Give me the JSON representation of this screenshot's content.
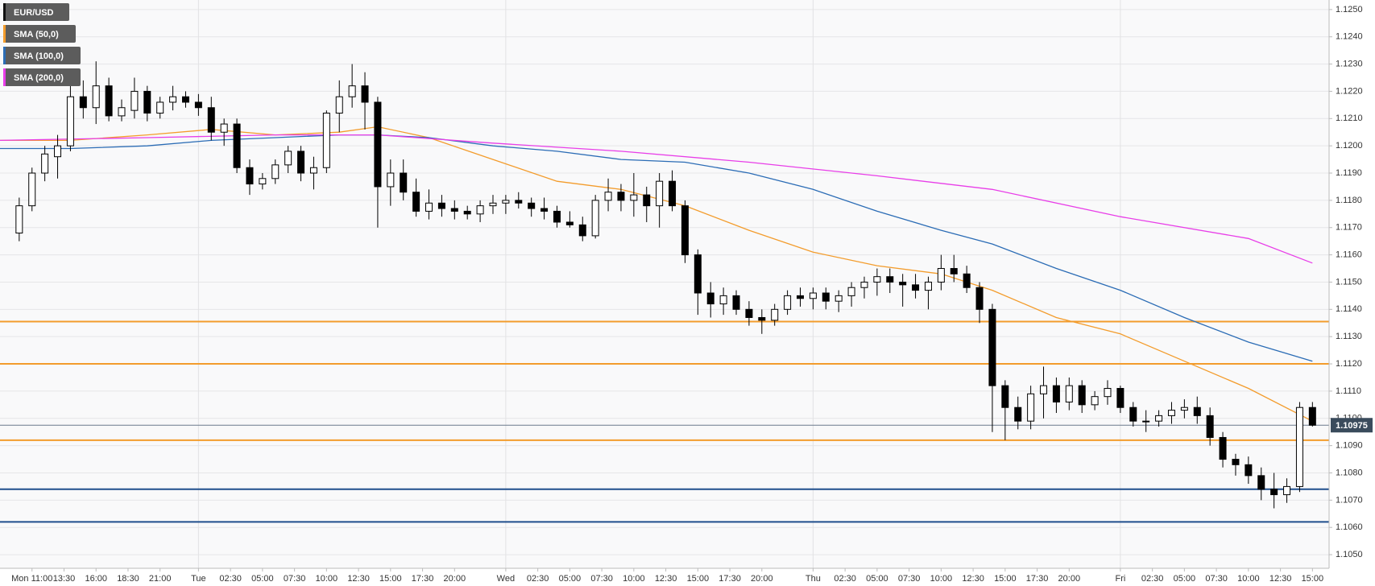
{
  "chart_data": {
    "type": "candlestick",
    "series": [
      {
        "name": "EUR/USD",
        "color": "#000000",
        "x": [
          10,
          11,
          12,
          13,
          14,
          15,
          16,
          17,
          18,
          19,
          20,
          21,
          22,
          23,
          24,
          25,
          26,
          27,
          28,
          29,
          30,
          31,
          32,
          33,
          34,
          35,
          36,
          37,
          38,
          39,
          40,
          41,
          42,
          43,
          44,
          45,
          46,
          47,
          48,
          49,
          50,
          51,
          52,
          53,
          54,
          55,
          56,
          57,
          58,
          59,
          60,
          61,
          62,
          63,
          64,
          65,
          66,
          67,
          68,
          69,
          70,
          71,
          72,
          73,
          74,
          75,
          76,
          77,
          78,
          79,
          80,
          81,
          82,
          83,
          84,
          85,
          86,
          87,
          88,
          89,
          90,
          91,
          92,
          93,
          94,
          95,
          96,
          97,
          98,
          99,
          100,
          101,
          102,
          103,
          104,
          105,
          106,
          107,
          108,
          109,
          110,
          111
        ],
        "open": [
          1.1168,
          1.1178,
          1.119,
          1.1196,
          1.12,
          1.1218,
          1.1214,
          1.1222,
          1.1211,
          1.1213,
          1.122,
          1.1212,
          1.1216,
          1.1218,
          1.1216,
          1.1214,
          1.1205,
          1.1208,
          1.1192,
          1.1186,
          1.1188,
          1.1193,
          1.1198,
          1.119,
          1.1192,
          1.1212,
          1.1218,
          1.1222,
          1.1216,
          1.1185,
          1.119,
          1.1183,
          1.1176,
          1.1179,
          1.1177,
          1.1176,
          1.1175,
          1.1178,
          1.1179,
          1.118,
          1.1179,
          1.1177,
          1.1176,
          1.1172,
          1.1171,
          1.1167,
          1.118,
          1.1183,
          1.118,
          1.1182,
          1.1178,
          1.1187,
          1.1178,
          1.116,
          1.1146,
          1.1142,
          1.1145,
          1.114,
          1.1137,
          1.1136,
          1.114,
          1.1145,
          1.1144,
          1.1146,
          1.1143,
          1.1145,
          1.1148,
          1.115,
          1.1152,
          1.115,
          1.1149,
          1.1147,
          1.115,
          1.1155,
          1.1153,
          1.1148,
          1.114,
          1.1112,
          1.1104,
          1.1099,
          1.1109,
          1.1112,
          1.1106,
          1.1112,
          1.1105,
          1.1108,
          1.1111,
          1.1104,
          1.1099,
          1.1099,
          1.1101,
          1.1103,
          1.1104,
          1.1101,
          1.1093,
          1.1085,
          1.1083,
          1.1079,
          1.1074,
          1.1072,
          1.1075,
          1.1104
        ],
        "high": [
          1.1181,
          1.1192,
          1.12,
          1.1204,
          1.1228,
          1.1224,
          1.1231,
          1.1225,
          1.1217,
          1.1225,
          1.1222,
          1.1218,
          1.1222,
          1.122,
          1.1219,
          1.1218,
          1.121,
          1.121,
          1.1195,
          1.119,
          1.1195,
          1.12,
          1.12,
          1.1196,
          1.1213,
          1.1224,
          1.123,
          1.1227,
          1.1218,
          1.1195,
          1.1195,
          1.1188,
          1.1184,
          1.1182,
          1.118,
          1.1178,
          1.118,
          1.1182,
          1.1182,
          1.1183,
          1.1181,
          1.1181,
          1.1178,
          1.1176,
          1.1174,
          1.1182,
          1.1188,
          1.1186,
          1.119,
          1.1185,
          1.119,
          1.1191,
          1.118,
          1.1162,
          1.115,
          1.1148,
          1.1147,
          1.1143,
          1.114,
          1.1142,
          1.1147,
          1.1148,
          1.1148,
          1.1148,
          1.1147,
          1.115,
          1.1152,
          1.1155,
          1.1155,
          1.1153,
          1.1153,
          1.1152,
          1.116,
          1.116,
          1.1156,
          1.115,
          1.1142,
          1.1114,
          1.1108,
          1.1112,
          1.1119,
          1.1115,
          1.1115,
          1.1114,
          1.111,
          1.1114,
          1.1112,
          1.1106,
          1.1103,
          1.1103,
          1.1106,
          1.1107,
          1.1108,
          1.1104,
          1.1095,
          1.1087,
          1.1086,
          1.1082,
          1.108,
          1.1078,
          1.1106,
          1.1106
        ],
        "low": [
          1.1165,
          1.1176,
          1.1187,
          1.1188,
          1.1198,
          1.121,
          1.1208,
          1.1209,
          1.1209,
          1.121,
          1.1209,
          1.121,
          1.1213,
          1.1214,
          1.1211,
          1.1202,
          1.12,
          1.119,
          1.1182,
          1.1184,
          1.1186,
          1.119,
          1.1187,
          1.1184,
          1.119,
          1.1205,
          1.1214,
          1.1206,
          1.117,
          1.1178,
          1.118,
          1.1174,
          1.1173,
          1.1174,
          1.1173,
          1.1173,
          1.1172,
          1.1175,
          1.1175,
          1.1177,
          1.1174,
          1.1173,
          1.117,
          1.117,
          1.1165,
          1.1166,
          1.1176,
          1.1176,
          1.1174,
          1.1172,
          1.117,
          1.1176,
          1.1157,
          1.1138,
          1.1137,
          1.1138,
          1.1138,
          1.1134,
          1.1131,
          1.1134,
          1.1138,
          1.1141,
          1.114,
          1.114,
          1.1139,
          1.1141,
          1.1144,
          1.1145,
          1.1146,
          1.1141,
          1.1144,
          1.114,
          1.1147,
          1.115,
          1.1146,
          1.1135,
          1.1095,
          1.1092,
          1.1096,
          1.1096,
          1.11,
          1.1102,
          1.1103,
          1.1102,
          1.1103,
          1.1105,
          1.1102,
          1.1097,
          1.1095,
          1.1097,
          1.1098,
          1.11,
          1.1098,
          1.109,
          1.1082,
          1.1079,
          1.1076,
          1.107,
          1.1067,
          1.1069,
          1.1073,
          1.1097
        ],
        "close": [
          1.1178,
          1.119,
          1.1197,
          1.12,
          1.1218,
          1.1214,
          1.1222,
          1.1211,
          1.1214,
          1.122,
          1.1212,
          1.1216,
          1.1218,
          1.1216,
          1.1214,
          1.1205,
          1.1208,
          1.1192,
          1.1186,
          1.1188,
          1.1193,
          1.1198,
          1.119,
          1.1192,
          1.1212,
          1.1218,
          1.1222,
          1.1216,
          1.1185,
          1.119,
          1.1183,
          1.1176,
          1.1179,
          1.1177,
          1.1176,
          1.1175,
          1.1178,
          1.1179,
          1.118,
          1.1179,
          1.1177,
          1.1176,
          1.1172,
          1.1171,
          1.1167,
          1.118,
          1.1183,
          1.118,
          1.1182,
          1.1178,
          1.1187,
          1.1178,
          1.116,
          1.1146,
          1.1142,
          1.1145,
          1.114,
          1.1137,
          1.1136,
          1.114,
          1.1145,
          1.1144,
          1.1146,
          1.1143,
          1.1145,
          1.1148,
          1.115,
          1.1152,
          1.115,
          1.1149,
          1.1147,
          1.115,
          1.1155,
          1.1153,
          1.1148,
          1.114,
          1.1112,
          1.1104,
          1.1099,
          1.1109,
          1.1112,
          1.1106,
          1.1112,
          1.1105,
          1.1108,
          1.1111,
          1.1104,
          1.1099,
          1.1099,
          1.1101,
          1.1103,
          1.1104,
          1.1101,
          1.1093,
          1.1085,
          1.1083,
          1.1079,
          1.1074,
          1.1072,
          1.1075,
          1.1104,
          1.10975
        ]
      },
      {
        "name": "SMA (50,0)",
        "color": "#f39c2c",
        "x": [
          8.5,
          14,
          20,
          25,
          30,
          35,
          38,
          42,
          47,
          52,
          57,
          62,
          67,
          72,
          77,
          82,
          86,
          91,
          96,
          101,
          106,
          111
        ],
        "values": [
          1.1202,
          1.1202,
          1.1204,
          1.1206,
          1.1204,
          1.1205,
          1.1207,
          1.1203,
          1.1195,
          1.1187,
          1.1184,
          1.1178,
          1.1169,
          1.1161,
          1.1156,
          1.1153,
          1.1147,
          1.1137,
          1.1131,
          1.1121,
          1.1111,
          1.1099
        ]
      },
      {
        "name": "SMA (100,0)",
        "color": "#2b6cb5",
        "x": [
          8.5,
          14,
          20,
          25,
          30,
          35,
          38,
          42,
          47,
          52,
          57,
          62,
          67,
          72,
          77,
          82,
          86,
          91,
          96,
          101,
          106,
          111
        ],
        "values": [
          1.1199,
          1.1199,
          1.12,
          1.1202,
          1.1203,
          1.1204,
          1.1204,
          1.1203,
          1.12,
          1.1198,
          1.1195,
          1.1194,
          1.119,
          1.1184,
          1.1176,
          1.1169,
          1.1164,
          1.1155,
          1.1147,
          1.1137,
          1.1128,
          1.1121
        ]
      },
      {
        "name": "SMA (200,0)",
        "color": "#e83ee8",
        "x": [
          8.5,
          20,
          30,
          38,
          47,
          57,
          67,
          77,
          86,
          96,
          106,
          111
        ],
        "values": [
          1.1202,
          1.1203,
          1.1204,
          1.1204,
          1.1201,
          1.1198,
          1.1194,
          1.1189,
          1.1184,
          1.1174,
          1.1166,
          1.1157
        ]
      }
    ],
    "hlines": [
      {
        "value": 1.11355,
        "color": "#f39c2c"
      },
      {
        "value": 1.112,
        "color": "#f39c2c"
      },
      {
        "value": 1.1092,
        "color": "#f39c2c"
      },
      {
        "value": 1.1074,
        "color": "#1f4e8c"
      },
      {
        "value": 1.1062,
        "color": "#1f4e8c"
      }
    ],
    "last_price": 1.10975,
    "xlim": [
      8.5,
      112.3
    ],
    "ylim": [
      1.1045,
      1.12535
    ],
    "xgrid": [
      24,
      48,
      72,
      96
    ],
    "xticks": [
      {
        "value": 11,
        "label": "Mon 11:00"
      },
      {
        "value": 13.5,
        "label": "13:30"
      },
      {
        "value": 16,
        "label": "16:00"
      },
      {
        "value": 18.5,
        "label": "18:30"
      },
      {
        "value": 21,
        "label": "21:00"
      },
      {
        "value": 24,
        "label": "Tue"
      },
      {
        "value": 26.5,
        "label": "02:30"
      },
      {
        "value": 29,
        "label": "05:00"
      },
      {
        "value": 31.5,
        "label": "07:30"
      },
      {
        "value": 34,
        "label": "10:00"
      },
      {
        "value": 36.5,
        "label": "12:30"
      },
      {
        "value": 39,
        "label": "15:00"
      },
      {
        "value": 41.5,
        "label": "17:30"
      },
      {
        "value": 44,
        "label": "20:00"
      },
      {
        "value": 48,
        "label": "Wed"
      },
      {
        "value": 50.5,
        "label": "02:30"
      },
      {
        "value": 53,
        "label": "05:00"
      },
      {
        "value": 55.5,
        "label": "07:30"
      },
      {
        "value": 58,
        "label": "10:00"
      },
      {
        "value": 60.5,
        "label": "12:30"
      },
      {
        "value": 63,
        "label": "15:00"
      },
      {
        "value": 65.5,
        "label": "17:30"
      },
      {
        "value": 68,
        "label": "20:00"
      },
      {
        "value": 72,
        "label": "Thu"
      },
      {
        "value": 74.5,
        "label": "02:30"
      },
      {
        "value": 77,
        "label": "05:00"
      },
      {
        "value": 79.5,
        "label": "07:30"
      },
      {
        "value": 82,
        "label": "10:00"
      },
      {
        "value": 84.5,
        "label": "12:30"
      },
      {
        "value": 87,
        "label": "15:00"
      },
      {
        "value": 89.5,
        "label": "17:30"
      },
      {
        "value": 92,
        "label": "20:00"
      },
      {
        "value": 96,
        "label": "Fri"
      },
      {
        "value": 98.5,
        "label": "02:30"
      },
      {
        "value": 101,
        "label": "05:00"
      },
      {
        "value": 103.5,
        "label": "07:30"
      },
      {
        "value": 106,
        "label": "10:00"
      },
      {
        "value": 108.5,
        "label": "12:30"
      },
      {
        "value": 111,
        "label": "15:00"
      }
    ],
    "yticks": [
      {
        "value": 1.105,
        "label": "1.1050"
      },
      {
        "value": 1.106,
        "label": "1.1060"
      },
      {
        "value": 1.107,
        "label": "1.1070"
      },
      {
        "value": 1.108,
        "label": "1.1080"
      },
      {
        "value": 1.109,
        "label": "1.1090"
      },
      {
        "value": 1.11,
        "label": "1.1100"
      },
      {
        "value": 1.111,
        "label": "1.1110"
      },
      {
        "value": 1.112,
        "label": "1.1120"
      },
      {
        "value": 1.113,
        "label": "1.1130"
      },
      {
        "value": 1.114,
        "label": "1.1140"
      },
      {
        "value": 1.115,
        "label": "1.1150"
      },
      {
        "value": 1.116,
        "label": "1.1160"
      },
      {
        "value": 1.117,
        "label": "1.1170"
      },
      {
        "value": 1.118,
        "label": "1.1180"
      },
      {
        "value": 1.119,
        "label": "1.1190"
      },
      {
        "value": 1.12,
        "label": "1.1200"
      },
      {
        "value": 1.121,
        "label": "1.1210"
      },
      {
        "value": 1.122,
        "label": "1.1220"
      },
      {
        "value": 1.123,
        "label": "1.1230"
      },
      {
        "value": 1.124,
        "label": "1.1240"
      },
      {
        "value": 1.125,
        "label": "1.1250"
      }
    ],
    "grid": true
  }
}
